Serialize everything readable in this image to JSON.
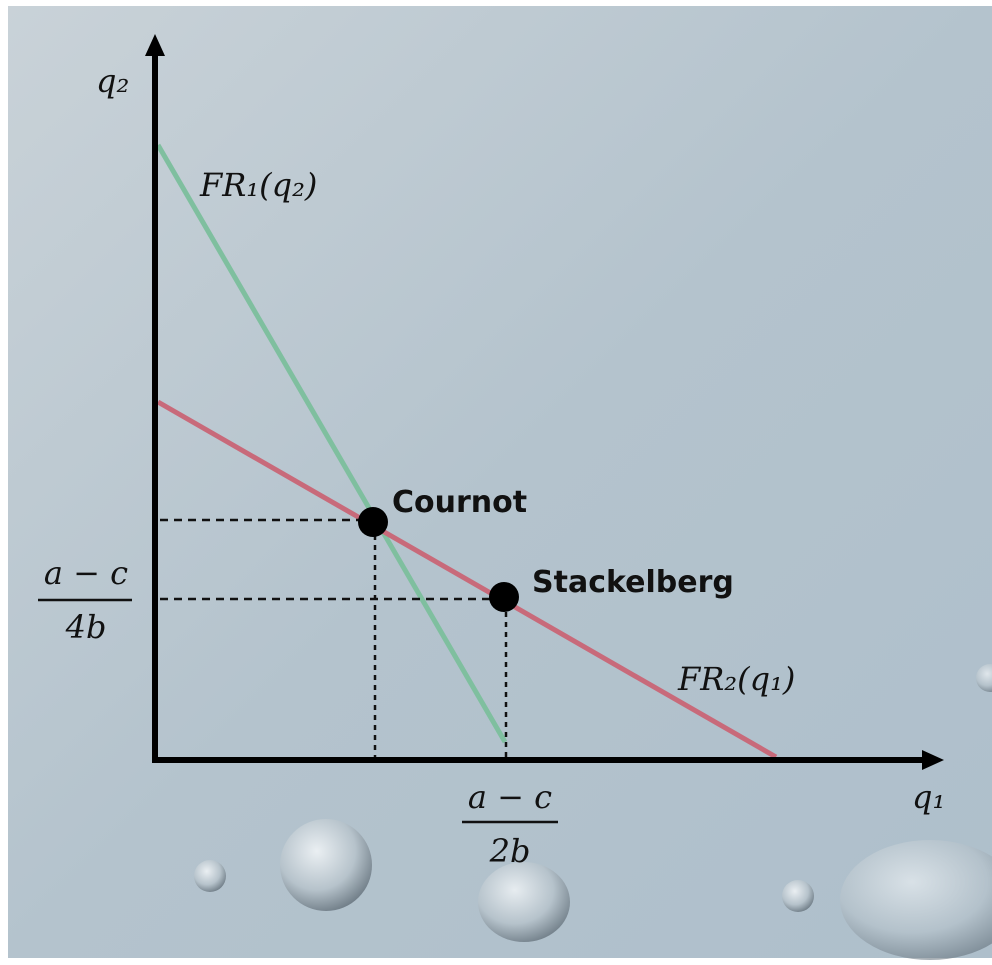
{
  "axes": {
    "y_label": "q₂",
    "x_label": "q₁"
  },
  "curves": [
    {
      "label": "FR₁(q₂)"
    },
    {
      "label": "FR₂(q₁)"
    }
  ],
  "points": [
    {
      "label": "Cournot"
    },
    {
      "label": "Stackelberg"
    }
  ],
  "ticks": {
    "y": {
      "numerator": "a − c",
      "denominator": "4b"
    },
    "x": {
      "numerator": "a − c",
      "denominator": "2b"
    }
  }
}
